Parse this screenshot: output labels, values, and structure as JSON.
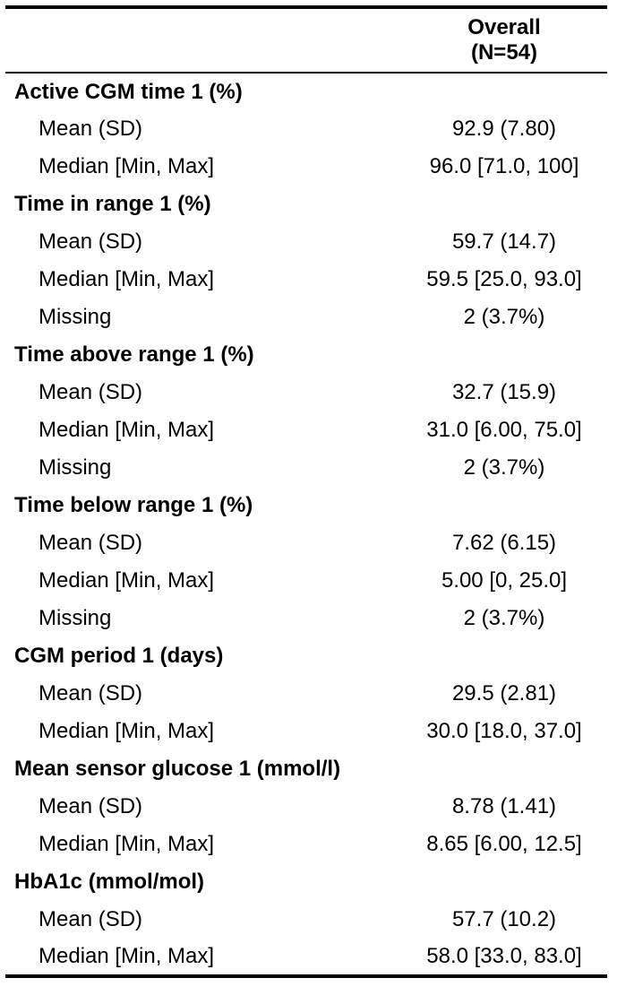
{
  "header": {
    "col1": "",
    "overall_line1": "Overall",
    "overall_line2": "(N=54)"
  },
  "rows": [
    {
      "type": "group",
      "label": "Active CGM time 1 (%)",
      "value": ""
    },
    {
      "type": "stat",
      "label": "Mean (SD)",
      "value": "92.9 (7.80)"
    },
    {
      "type": "stat",
      "label": "Median [Min, Max]",
      "value": "96.0 [71.0, 100]"
    },
    {
      "type": "group",
      "label": "Time in range 1 (%)",
      "value": ""
    },
    {
      "type": "stat",
      "label": "Mean (SD)",
      "value": "59.7 (14.7)"
    },
    {
      "type": "stat",
      "label": "Median [Min, Max]",
      "value": "59.5 [25.0, 93.0]"
    },
    {
      "type": "stat",
      "label": "Missing",
      "value": "2 (3.7%)"
    },
    {
      "type": "group",
      "label": "Time above range 1 (%)",
      "value": ""
    },
    {
      "type": "stat",
      "label": "Mean (SD)",
      "value": "32.7 (15.9)"
    },
    {
      "type": "stat",
      "label": "Median [Min, Max]",
      "value": "31.0 [6.00, 75.0]"
    },
    {
      "type": "stat",
      "label": "Missing",
      "value": "2 (3.7%)"
    },
    {
      "type": "group",
      "label": "Time below range 1 (%)",
      "value": ""
    },
    {
      "type": "stat",
      "label": "Mean (SD)",
      "value": "7.62 (6.15)"
    },
    {
      "type": "stat",
      "label": "Median [Min, Max]",
      "value": "5.00 [0, 25.0]"
    },
    {
      "type": "stat",
      "label": "Missing",
      "value": "2 (3.7%)"
    },
    {
      "type": "group",
      "label": "CGM period 1 (days)",
      "value": ""
    },
    {
      "type": "stat",
      "label": "Mean (SD)",
      "value": "29.5 (2.81)"
    },
    {
      "type": "stat",
      "label": "Median [Min, Max]",
      "value": "30.0 [18.0, 37.0]"
    },
    {
      "type": "group",
      "label": "Mean sensor glucose 1 (mmol/l)",
      "value": ""
    },
    {
      "type": "stat",
      "label": "Mean (SD)",
      "value": "8.78 (1.41)"
    },
    {
      "type": "stat",
      "label": "Median [Min, Max]",
      "value": "8.65 [6.00, 12.5]"
    },
    {
      "type": "group",
      "label": "HbA1c (mmol/mol)",
      "value": ""
    },
    {
      "type": "stat",
      "label": "Mean (SD)",
      "value": "57.7 (10.2)"
    },
    {
      "type": "stat",
      "label": "Median [Min, Max]",
      "value": "58.0 [33.0, 83.0]"
    }
  ]
}
